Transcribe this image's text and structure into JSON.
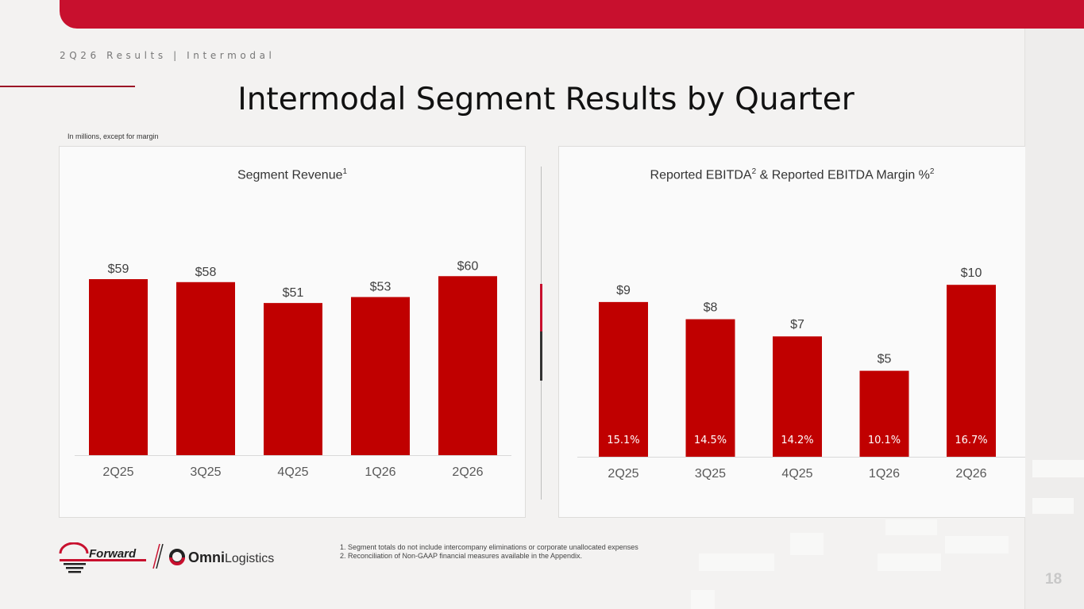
{
  "header": {
    "breadcrumb": "2Q26 Results | Intermodal",
    "title": "Intermodal Segment Results by Quarter",
    "units_note": "In millions, except for margin"
  },
  "colors": {
    "brand_red": "#c8102e",
    "bar_red": "#c00000"
  },
  "chart_data": [
    {
      "type": "bar",
      "title": "Segment Revenue",
      "title_sup": "1",
      "categories": [
        "2Q25",
        "3Q25",
        "4Q25",
        "1Q26",
        "2Q26"
      ],
      "values": [
        59,
        58,
        51,
        53,
        60
      ],
      "value_labels": [
        "$59",
        "$58",
        "$51",
        "$53",
        "$60"
      ],
      "ylim": [
        0,
        71.5
      ],
      "grid": false
    },
    {
      "type": "bar",
      "title_parts": [
        "Reported EBITDA",
        "2",
        " & Reported EBITDA Margin %",
        "2"
      ],
      "categories": [
        "2Q25",
        "3Q25",
        "4Q25",
        "1Q26",
        "2Q26"
      ],
      "values": [
        9,
        8,
        7,
        5,
        10
      ],
      "value_labels": [
        "$9",
        "$8",
        "$7",
        "$5",
        "$10"
      ],
      "margins": [
        "15.1%",
        "14.5%",
        "14.2%",
        "10.1%",
        "16.7%"
      ],
      "ylim": [
        0,
        12.5
      ],
      "grid": false
    }
  ],
  "footnotes": [
    "1.  Segment totals do not include intercompany eliminations or corporate unallocated expenses",
    "2.  Reconciliation of Non-GAAP financial measures available in the Appendix."
  ],
  "logo": {
    "forward_text": "Forward",
    "omni_text": "Omni",
    "logistics_text": "Logistics"
  },
  "page_number": "18"
}
